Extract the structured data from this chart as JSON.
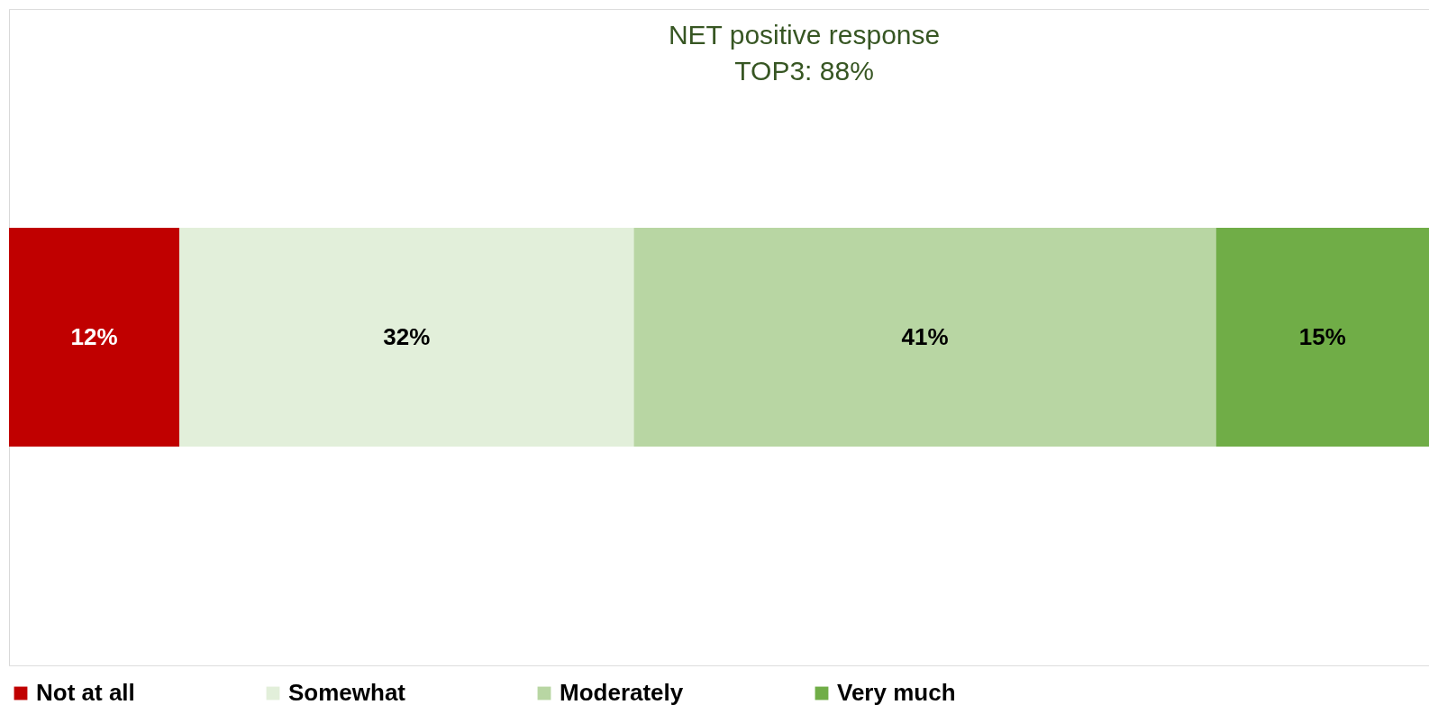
{
  "chart_data": {
    "type": "bar",
    "orientation": "horizontal",
    "stacked": true,
    "categories": [
      null
    ],
    "series": [
      {
        "name": "Not at all",
        "color": "#c00000",
        "values": [
          12
        ],
        "value_labels": [
          "12%"
        ]
      },
      {
        "name": "Somewhat",
        "color": "#e2efda",
        "values": [
          32
        ],
        "value_labels": [
          "32%"
        ]
      },
      {
        "name": "Moderately",
        "color": "#b8d6a3",
        "values": [
          41
        ],
        "value_labels": [
          "41%"
        ]
      },
      {
        "name": "Very much",
        "color": "#70ad47",
        "values": [
          15
        ],
        "value_labels": [
          "15%"
        ]
      }
    ],
    "tick_labels": false,
    "legend": "bottom",
    "annotations": [
      "NET positive response",
      "TOP3: 88%"
    ]
  }
}
